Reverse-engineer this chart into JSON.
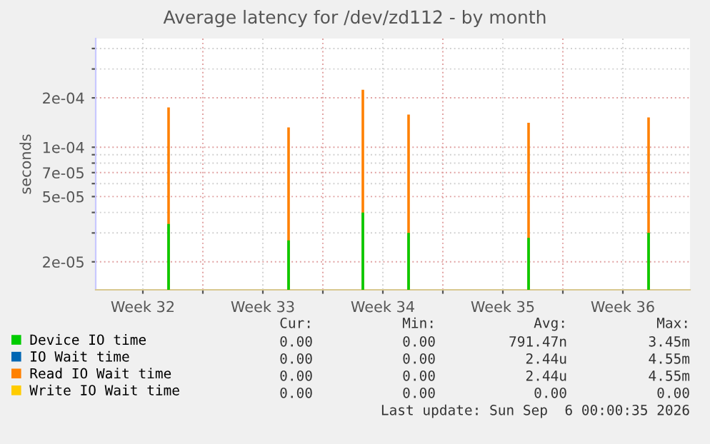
{
  "chart_data": {
    "type": "bar",
    "title": "Average latency for /dev/zd112 - by month",
    "ylabel": "seconds",
    "log": "y",
    "grid": true,
    "legend": "bottom",
    "xlim": [
      "2026-08-03T18:00",
      "2026-09-07T10:00"
    ],
    "xticks": [
      {
        "value": "2026-08-06T12:00",
        "label": "Week 32"
      },
      {
        "value": "2026-08-13T12:00",
        "label": "Week 33"
      },
      {
        "value": "2026-08-20T12:00",
        "label": "Week 34"
      },
      {
        "value": "2026-08-27T12:00",
        "label": "Week 35"
      },
      {
        "value": "2026-09-03T12:00",
        "label": "Week 36"
      },
      {
        "value": "2026-08-10",
        "label": null
      },
      {
        "value": "2026-08-17",
        "label": null
      },
      {
        "value": "2026-08-24",
        "label": null
      },
      {
        "value": "2026-08-31",
        "label": null
      }
    ],
    "ylim": [
      1.35e-05,
      0.00046
    ],
    "yticks": [
      {
        "value": 2e-05,
        "label": "2e-05"
      },
      {
        "value": 3e-05,
        "label": null
      },
      {
        "value": 4e-05,
        "label": null
      },
      {
        "value": 5e-05,
        "label": "5e-05"
      },
      {
        "value": 6e-05,
        "label": null
      },
      {
        "value": 7e-05,
        "label": "7e-05"
      },
      {
        "value": 8e-05,
        "label": null
      },
      {
        "value": 9e-05,
        "label": null
      },
      {
        "value": 0.0001,
        "label": "1e-04"
      },
      {
        "value": 0.0002,
        "label": "2e-04"
      },
      {
        "value": 0.0003,
        "label": null
      },
      {
        "value": 0.0004,
        "label": null
      }
    ],
    "series": [
      {
        "name": "Device IO time",
        "color": "#00cc00",
        "x": [
          "2026-08-08",
          "2026-08-15",
          "2026-08-19T08:00",
          "2026-08-22",
          "2026-08-29",
          "2026-09-05"
        ],
        "values": [
          3.4e-05,
          2.7e-05,
          4e-05,
          3e-05,
          2.8e-05,
          3e-05
        ]
      },
      {
        "name": "IO Wait time",
        "color": "#0066b3"
      },
      {
        "name": "Read IO Wait time",
        "color": "#ff8000",
        "x": [
          "2026-08-08",
          "2026-08-15",
          "2026-08-19T08:00",
          "2026-08-22",
          "2026-08-29",
          "2026-09-05"
        ],
        "values": [
          0.000175,
          0.000132,
          0.000224,
          0.000158,
          0.000141,
          0.000152
        ]
      },
      {
        "name": "Write IO Wait time",
        "color": "#ffcc00"
      }
    ],
    "annotations": [
      "Cur:",
      "Min:",
      "Avg:",
      "Max:",
      "0.00",
      "0.00",
      "791.47n",
      "3.45m",
      "0.00",
      "0.00",
      "2.44u",
      "4.55m",
      "0.00",
      "0.00",
      "2.44u",
      "4.55m",
      "0.00",
      "0.00",
      "0.00",
      "0.00",
      "Last update: Sun Sep  6 00:00:35 2026"
    ]
  }
}
